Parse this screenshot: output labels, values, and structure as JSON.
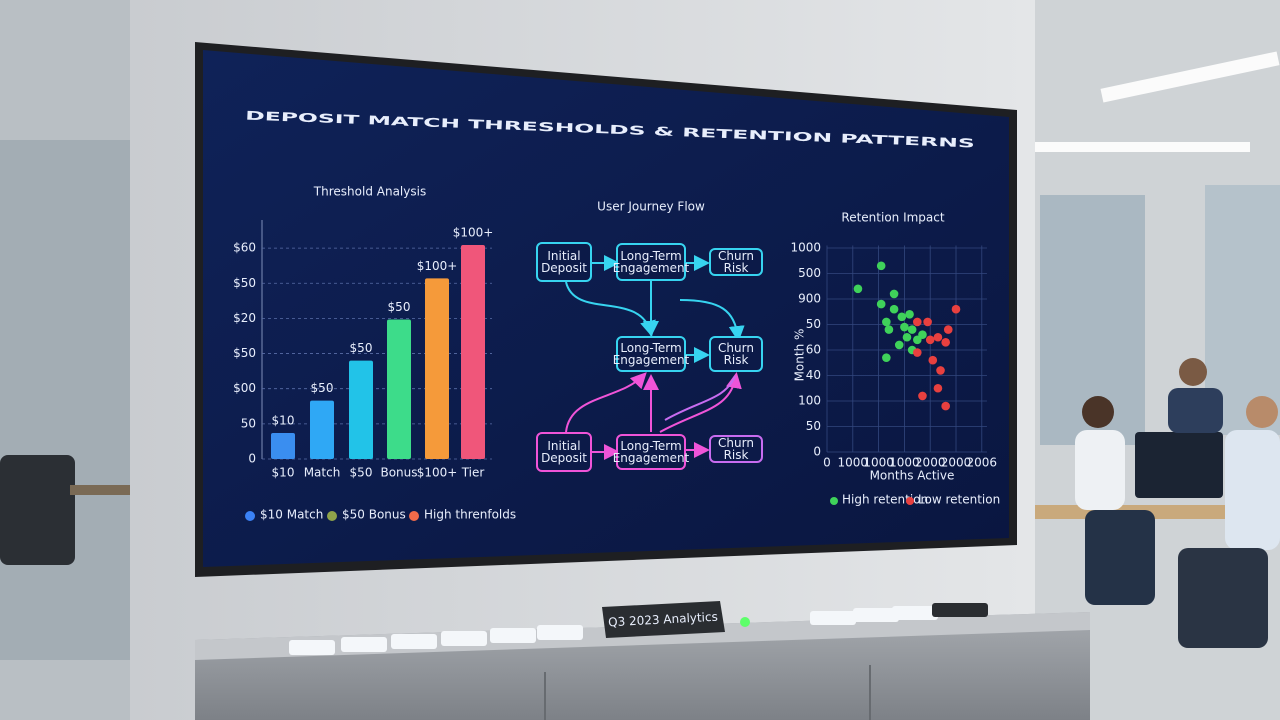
{
  "title": "DEPOSIT MATCH THRESHOLDS & RETENTION PATTERNS",
  "chart_data": [
    {
      "type": "bar",
      "title": "Threshold Analysis",
      "categories": [
        "$10",
        "Match",
        "$50",
        "Bonus",
        "$100+",
        "Tier"
      ],
      "values": [
        7.4,
        16.6,
        28,
        39.7,
        51.4,
        60.9
      ],
      "colors": [
        "#3a8ef0",
        "#2fa8f5",
        "#22c3e8",
        "#3ddc8a",
        "#f59a3a",
        "#f0567a"
      ],
      "bar_annotations": [
        "$10",
        "$50",
        "$50",
        "$50",
        "$100+",
        "$100+"
      ],
      "ylim": [
        0,
        68
      ],
      "yticks": [
        0,
        {
          "value": 10,
          "label": "50"
        },
        {
          "value": 20,
          "label": "$00"
        },
        {
          "value": 30,
          "label": "$50"
        },
        {
          "value": 40,
          "label": "$20"
        },
        {
          "value": 50,
          "label": "$50"
        },
        {
          "value": 60,
          "label": "$60"
        }
      ],
      "grid": true,
      "legend": [
        {
          "name": "$10 Match",
          "color": "#3b82f6"
        },
        {
          "name": "$50 Bonus",
          "color": "#8fa34a"
        },
        {
          "name": "High threnfolds",
          "color": "#f26b4a"
        }
      ]
    },
    {
      "type": "scatter",
      "title": "Retention Impact",
      "x_label": "Months Active",
      "y_label": "Month %",
      "xlim": [
        0,
        6.2
      ],
      "ylim": [
        0,
        8.1
      ],
      "xticks": [
        0,
        {
          "value": 1,
          "label": "1000"
        },
        {
          "value": 2,
          "label": "1000"
        },
        {
          "value": 3,
          "label": "1000"
        },
        {
          "value": 4,
          "label": "2000"
        },
        {
          "value": 5,
          "label": "2000"
        },
        {
          "value": 6,
          "label": "2006"
        }
      ],
      "yticks": [
        0,
        {
          "value": 1,
          "label": "50"
        },
        {
          "value": 2,
          "label": "100"
        },
        {
          "value": 3,
          "label": "40"
        },
        {
          "value": 4,
          "label": "60"
        },
        {
          "value": 5,
          "label": "50"
        },
        {
          "value": 6,
          "label": "900"
        },
        {
          "value": 7,
          "label": "500"
        },
        {
          "value": 8,
          "label": "1000"
        }
      ],
      "grid": true,
      "series": [
        {
          "name": "High retention",
          "color": "#3fd25a",
          "x": [
            2.1,
            1.2,
            2.6,
            2.1,
            2.6,
            2.9,
            3.2,
            2.3,
            2.4,
            3.0,
            3.3,
            3.1,
            2.8,
            3.5,
            3.3,
            2.3,
            3.7
          ],
          "values": [
            7.3,
            6.4,
            6.2,
            5.8,
            5.6,
            5.3,
            5.4,
            5.1,
            4.8,
            4.9,
            4.8,
            4.5,
            4.2,
            4.4,
            4.0,
            3.7,
            4.6
          ]
        },
        {
          "name": "Low retention",
          "color": "#e8403f",
          "x": [
            5.0,
            4.7,
            3.5,
            3.9,
            4.3,
            4.6,
            4.0,
            3.5,
            4.1,
            4.4,
            4.3,
            3.7,
            4.6
          ],
          "values": [
            5.6,
            4.8,
            5.1,
            5.1,
            4.5,
            4.3,
            4.4,
            3.9,
            3.6,
            3.2,
            2.5,
            2.2,
            1.8
          ]
        }
      ]
    }
  ],
  "flow": {
    "title": "User Journey Flow",
    "nodes": [
      "Initial Deposit",
      "Long-Term Engagement",
      "Churn Risk",
      "Long-Term Engagement",
      "Churn Risk",
      "Initial Deposit",
      "Long-Term Engagement",
      "Churn Risk"
    ]
  },
  "plate": "Q3 2023 Analytics"
}
